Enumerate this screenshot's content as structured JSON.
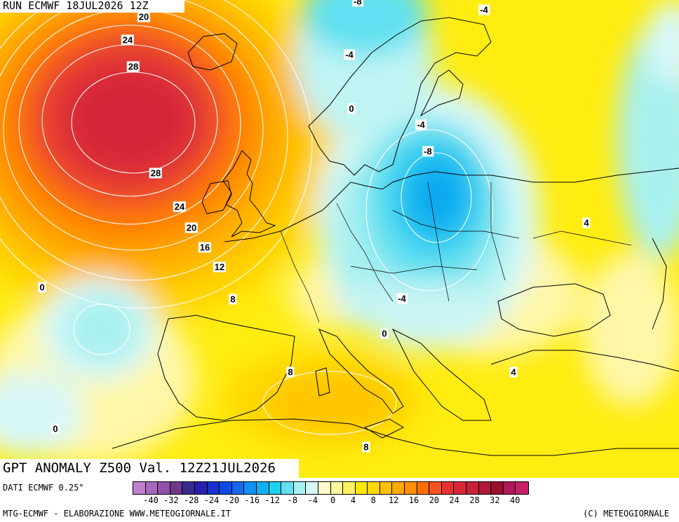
{
  "header": {
    "run_label": "RUN ECMWF 18JUL2026 12Z"
  },
  "map": {
    "title": "GPT ANOMALY Z500 Val. 12Z21JUL2026",
    "contour_labels": [
      "20",
      "24",
      "28",
      "28",
      "24",
      "20",
      "16",
      "12",
      "8",
      "0",
      "0",
      "-8",
      "-4",
      "-4",
      "0",
      "-4",
      "-8",
      "-4",
      "0",
      "4",
      "4",
      "8",
      "8"
    ]
  },
  "legend": {
    "colors": [
      "#c080d0",
      "#a868c0",
      "#9050a8",
      "#703888",
      "#382890",
      "#2820b0",
      "#1830d0",
      "#1048e8",
      "#1868f0",
      "#1090f0",
      "#10b0f0",
      "#20d0f0",
      "#60e0f0",
      "#a8f0f0",
      "#d8f8f8",
      "#fffcc8",
      "#fff8a0",
      "#fff060",
      "#ffe800",
      "#ffd800",
      "#ffc000",
      "#ffa800",
      "#ff9000",
      "#ff7000",
      "#f85020",
      "#e83030",
      "#d82838",
      "#c82038",
      "#b01838",
      "#981030",
      "#b01858",
      "#c82068"
    ],
    "ticks": [
      "-40",
      "-32",
      "-28",
      "-24",
      "-20",
      "-16",
      "-12",
      "-8",
      "-4",
      "0",
      "4",
      "8",
      "12",
      "16",
      "20",
      "24",
      "28",
      "32",
      "40"
    ]
  },
  "footer": {
    "data_source": "DATI ECMWF 0.25°",
    "credit_left": "MTG-ECMWF - ELABORAZIONE WWW.METEOGIORNALE.IT",
    "credit_right": "(C) METEOGIORNALE"
  }
}
